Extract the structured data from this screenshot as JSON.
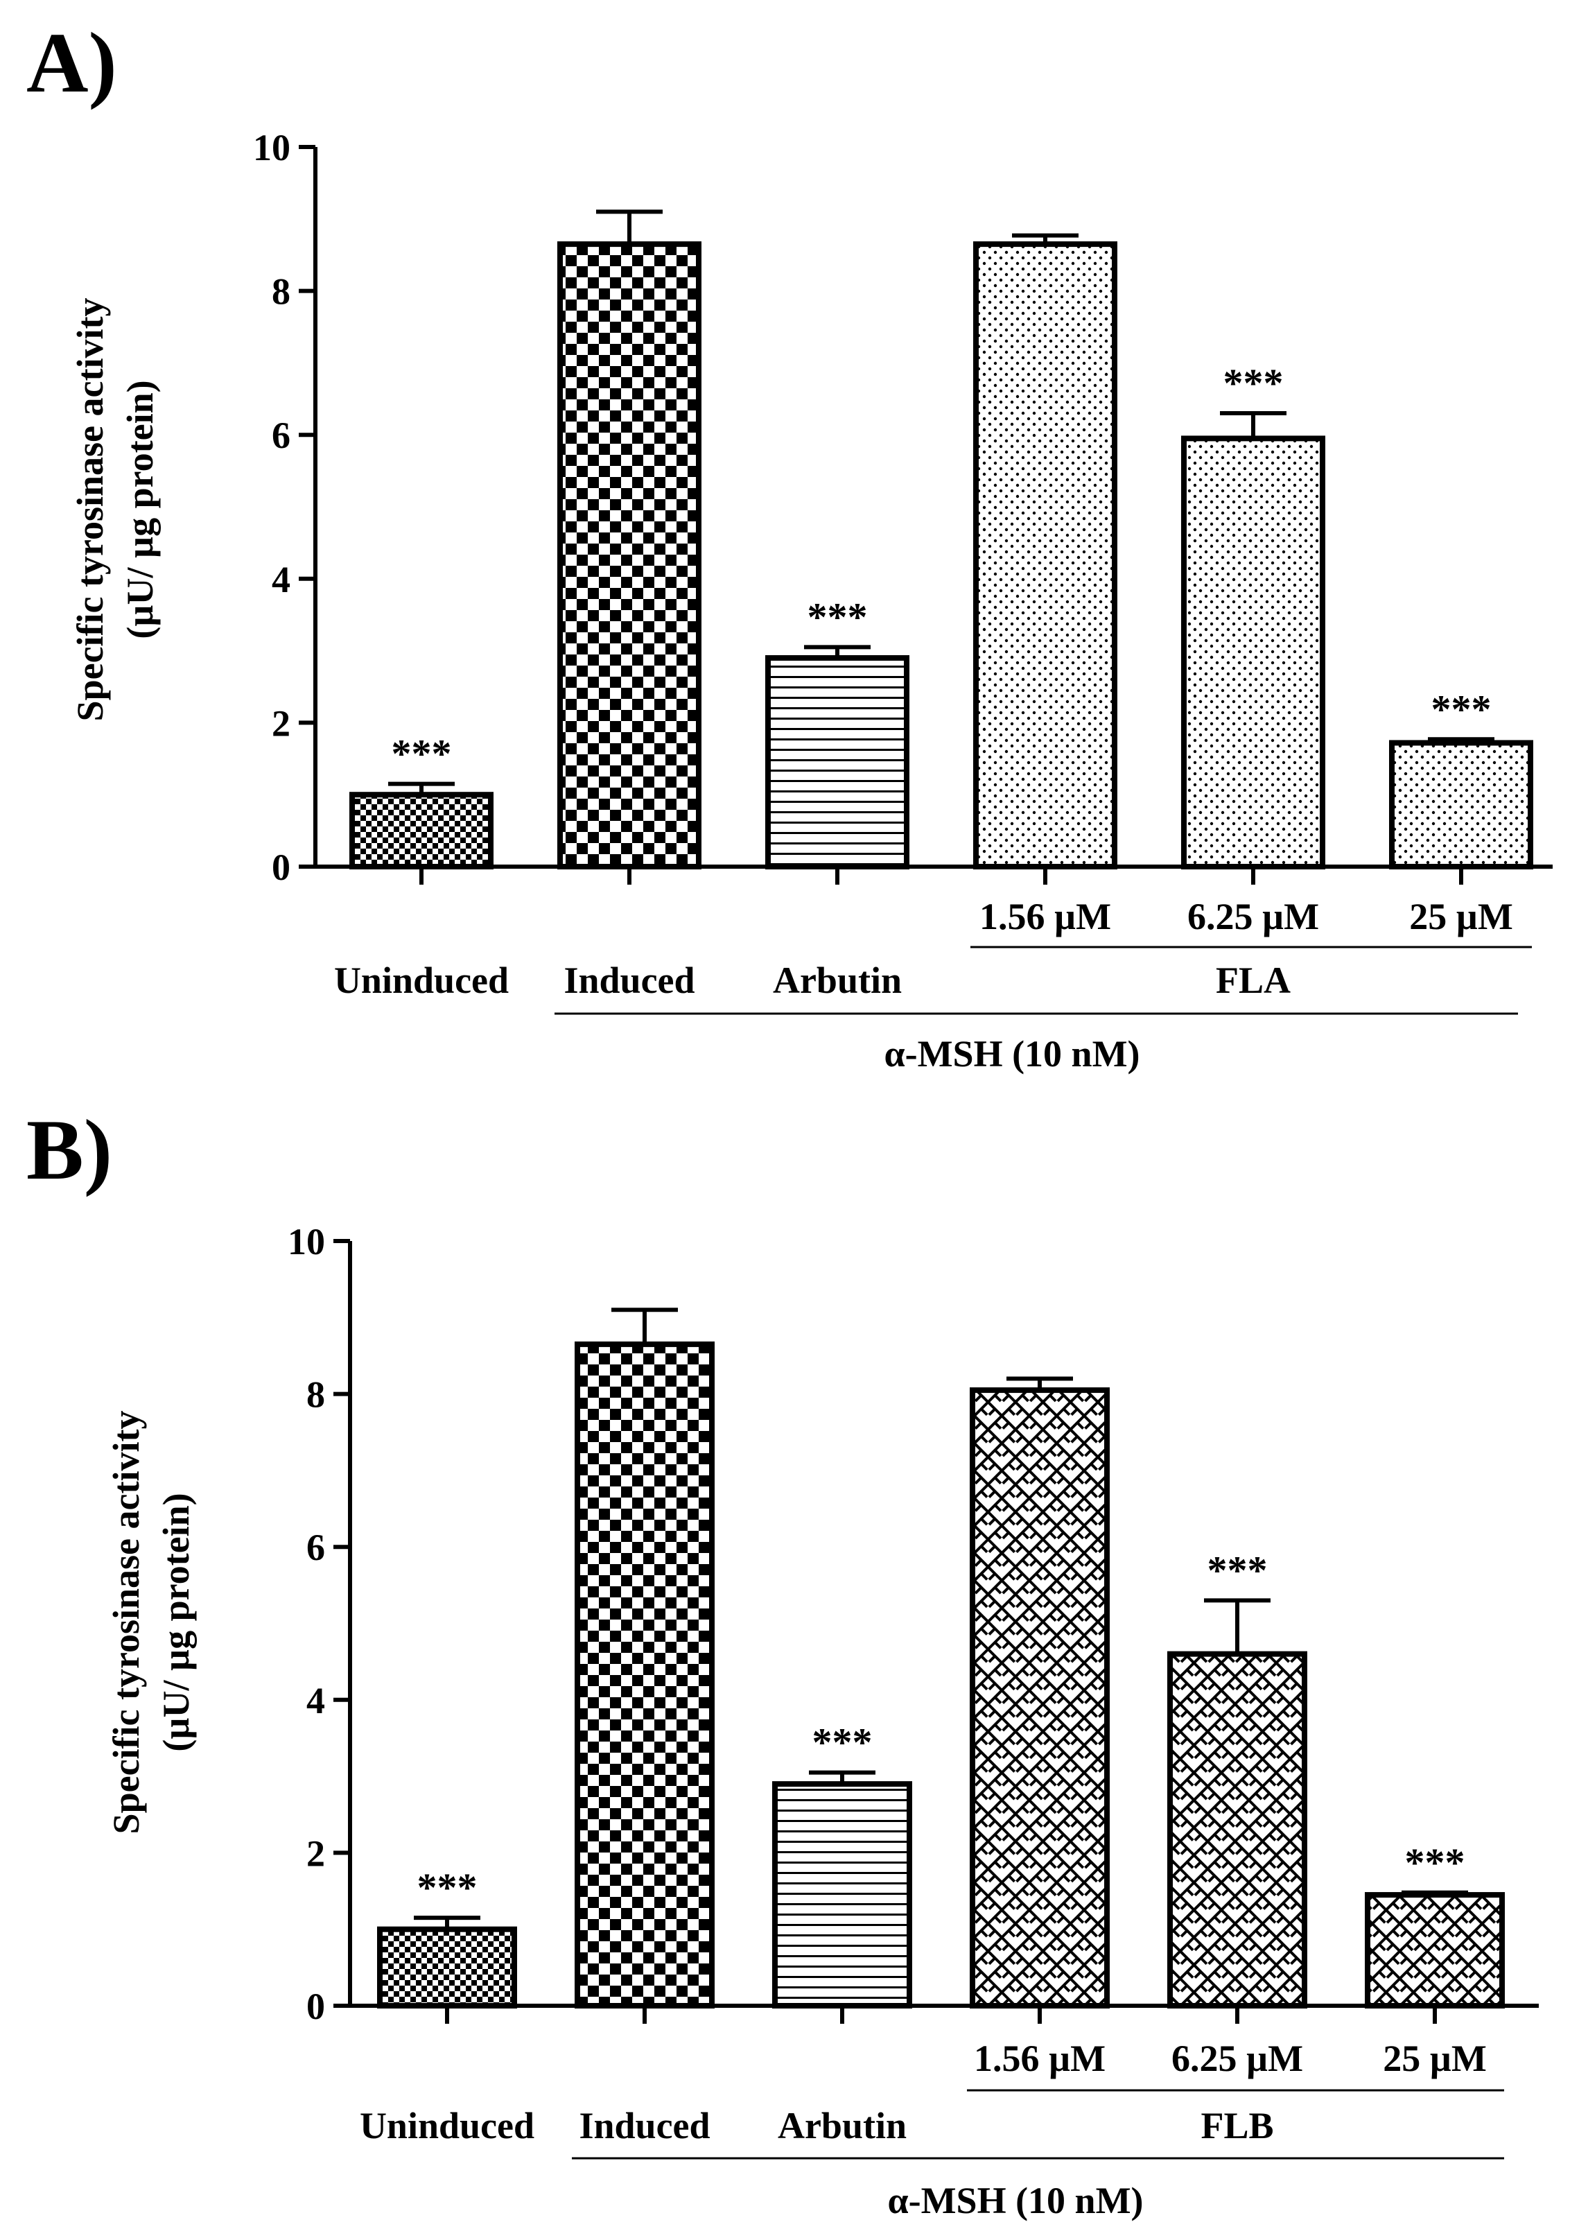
{
  "figure": {
    "panels_count": 2
  },
  "chart_data": [
    {
      "type": "bar",
      "panel_label": "A)",
      "title": "",
      "ylabel_line1": "Specific tyrosinase activity",
      "ylabel_line2": "(µU/ µg protein)",
      "xlabel": "",
      "ylim": [
        0,
        10
      ],
      "yticks": [
        0,
        2,
        4,
        6,
        8,
        10
      ],
      "categories": [
        "Uninduced",
        "Induced",
        "Arbutin",
        "1.56 µM",
        "6.25 µM",
        "25 µM"
      ],
      "values": [
        1.0,
        8.65,
        2.9,
        8.65,
        5.95,
        1.72
      ],
      "errors": [
        0.15,
        0.45,
        0.15,
        0.12,
        0.35,
        0.05
      ],
      "patterns": [
        "fine-check",
        "checker",
        "horizontal-lines",
        "dots",
        "dots",
        "dots"
      ],
      "significance": [
        "***",
        "",
        "***",
        "",
        "***",
        "***"
      ],
      "group_labels": {
        "compound": "FLA",
        "inducer": "α-MSH (10 nM)"
      }
    },
    {
      "type": "bar",
      "panel_label": "B)",
      "title": "",
      "ylabel_line1": "Specific tyrosinase activity",
      "ylabel_line2": "(µU/ µg protein)",
      "xlabel": "",
      "ylim": [
        0,
        10
      ],
      "yticks": [
        0,
        2,
        4,
        6,
        8,
        10
      ],
      "categories": [
        "Uninduced",
        "Induced",
        "Arbutin",
        "1.56 µM",
        "6.25 µM",
        "25 µM"
      ],
      "values": [
        1.0,
        8.65,
        2.9,
        8.05,
        4.6,
        1.45
      ],
      "errors": [
        0.15,
        0.45,
        0.15,
        0.15,
        0.7,
        0.03
      ],
      "patterns": [
        "fine-check",
        "checker",
        "horizontal-lines",
        "crosshatch",
        "crosshatch",
        "crosshatch"
      ],
      "significance": [
        "***",
        "",
        "***",
        "",
        "***",
        "***"
      ],
      "group_labels": {
        "compound": "FLB",
        "inducer": "α-MSH (10 nM)"
      }
    }
  ]
}
